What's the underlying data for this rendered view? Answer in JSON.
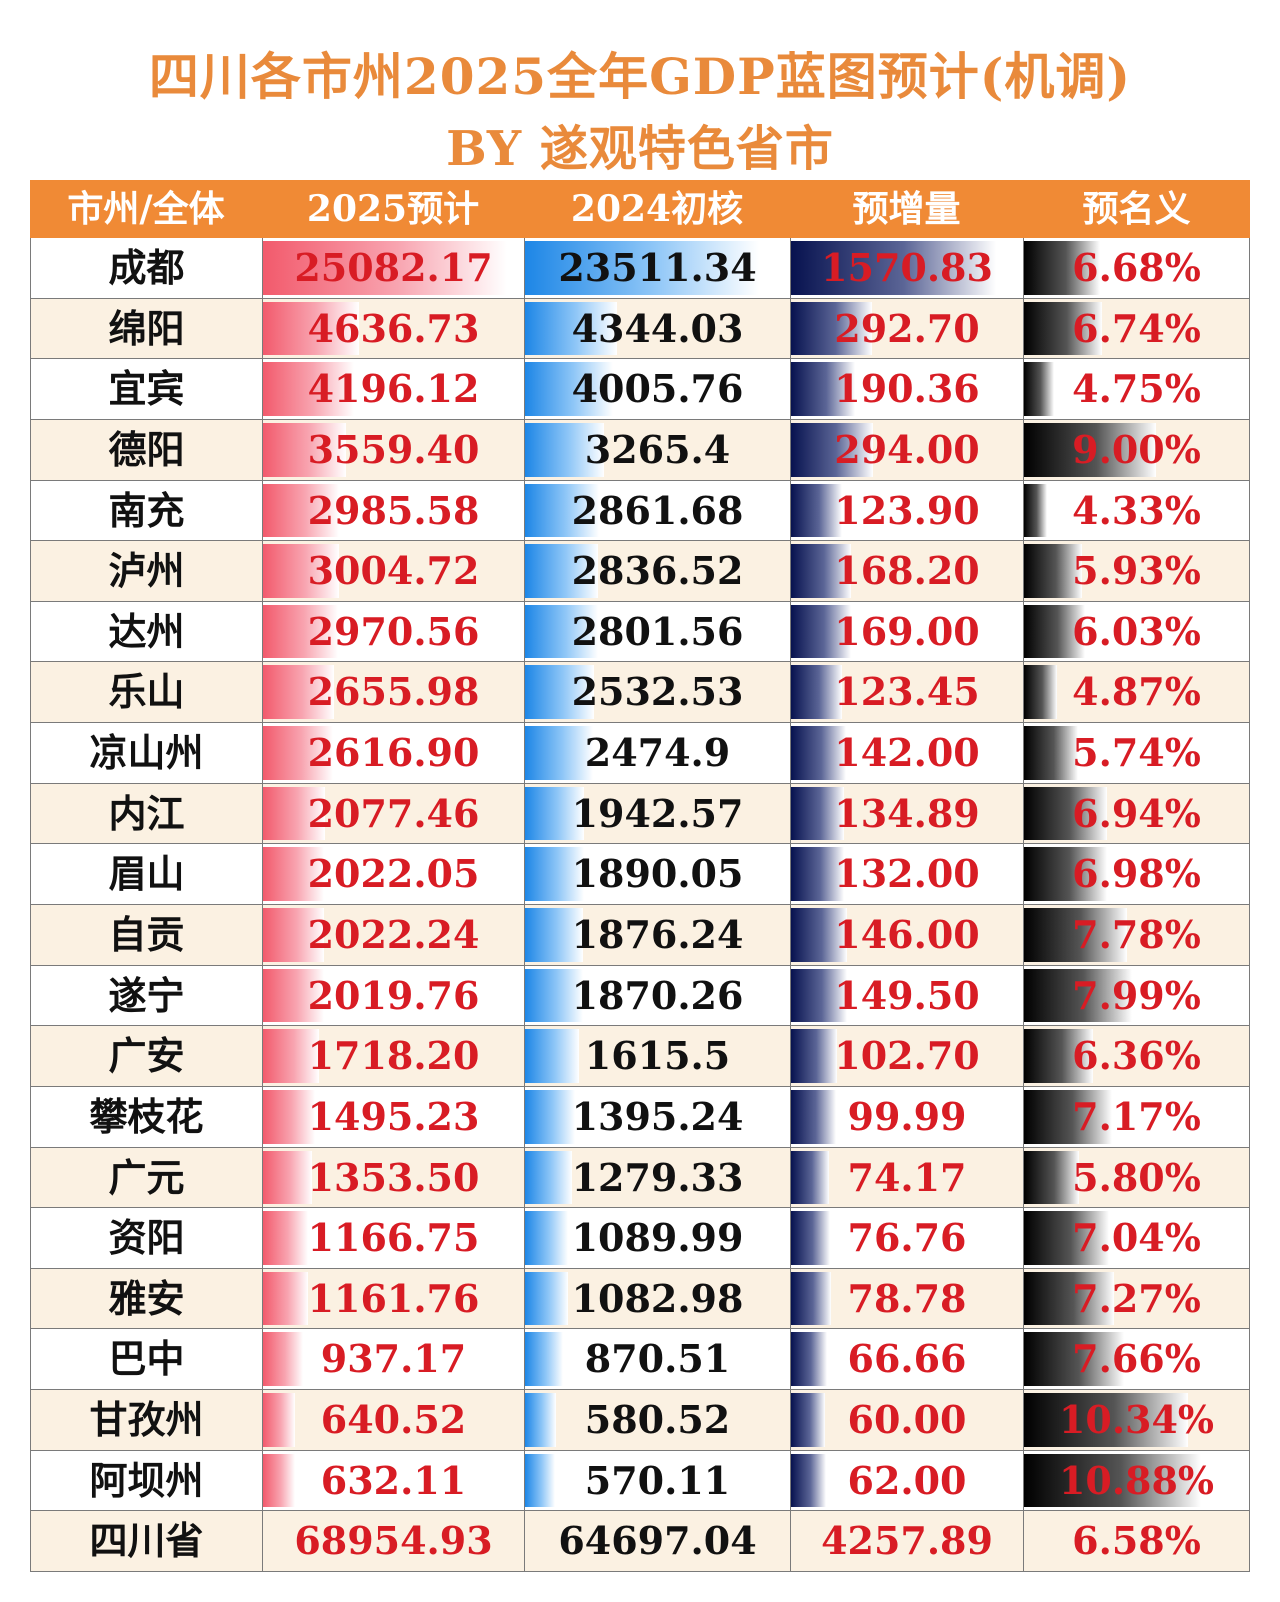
{
  "title": "四川各市州2025全年GDP蓝图预计(机调)",
  "subtitle": "BY 遂观特色省市",
  "colors": {
    "title": "#e98a3b",
    "header_bg": "#f08a35",
    "value_red": "#d81c24",
    "row_alt": "#fbf1e2",
    "bar_2025": "#f25a6c",
    "bar_2024": "#1d86e6",
    "bar_increase": "#07124f",
    "bar_growth": "#000000"
  },
  "chart_data": {
    "type": "table",
    "columns": [
      "市州/全体",
      "2025预计",
      "2024初核",
      "预增量",
      "预名义"
    ],
    "rows": [
      {
        "name": "成都",
        "gdp2025": "25082.17",
        "gdp2024": "23511.34",
        "increase": "1570.83",
        "growth": "6.68%"
      },
      {
        "name": "绵阳",
        "gdp2025": "4636.73",
        "gdp2024": "4344.03",
        "increase": "292.70",
        "growth": "6.74%"
      },
      {
        "name": "宜宾",
        "gdp2025": "4196.12",
        "gdp2024": "4005.76",
        "increase": "190.36",
        "growth": "4.75%"
      },
      {
        "name": "德阳",
        "gdp2025": "3559.40",
        "gdp2024": "3265.4",
        "increase": "294.00",
        "growth": "9.00%"
      },
      {
        "name": "南充",
        "gdp2025": "2985.58",
        "gdp2024": "2861.68",
        "increase": "123.90",
        "growth": "4.33%"
      },
      {
        "name": "泸州",
        "gdp2025": "3004.72",
        "gdp2024": "2836.52",
        "increase": "168.20",
        "growth": "5.93%"
      },
      {
        "name": "达州",
        "gdp2025": "2970.56",
        "gdp2024": "2801.56",
        "increase": "169.00",
        "growth": "6.03%"
      },
      {
        "name": "乐山",
        "gdp2025": "2655.98",
        "gdp2024": "2532.53",
        "increase": "123.45",
        "growth": "4.87%"
      },
      {
        "name": "凉山州",
        "gdp2025": "2616.90",
        "gdp2024": "2474.9",
        "increase": "142.00",
        "growth": "5.74%"
      },
      {
        "name": "内江",
        "gdp2025": "2077.46",
        "gdp2024": "1942.57",
        "increase": "134.89",
        "growth": "6.94%"
      },
      {
        "name": "眉山",
        "gdp2025": "2022.05",
        "gdp2024": "1890.05",
        "increase": "132.00",
        "growth": "6.98%"
      },
      {
        "name": "自贡",
        "gdp2025": "2022.24",
        "gdp2024": "1876.24",
        "increase": "146.00",
        "growth": "7.78%"
      },
      {
        "name": "遂宁",
        "gdp2025": "2019.76",
        "gdp2024": "1870.26",
        "increase": "149.50",
        "growth": "7.99%"
      },
      {
        "name": "广安",
        "gdp2025": "1718.20",
        "gdp2024": "1615.5",
        "increase": "102.70",
        "growth": "6.36%"
      },
      {
        "name": "攀枝花",
        "gdp2025": "1495.23",
        "gdp2024": "1395.24",
        "increase": "99.99",
        "growth": "7.17%"
      },
      {
        "name": "广元",
        "gdp2025": "1353.50",
        "gdp2024": "1279.33",
        "increase": "74.17",
        "growth": "5.80%"
      },
      {
        "name": "资阳",
        "gdp2025": "1166.75",
        "gdp2024": "1089.99",
        "increase": "76.76",
        "growth": "7.04%"
      },
      {
        "name": "雅安",
        "gdp2025": "1161.76",
        "gdp2024": "1082.98",
        "increase": "78.78",
        "growth": "7.27%"
      },
      {
        "name": "巴中",
        "gdp2025": "937.17",
        "gdp2024": "870.51",
        "increase": "66.66",
        "growth": "7.66%"
      },
      {
        "name": "甘孜州",
        "gdp2025": "640.52",
        "gdp2024": "580.52",
        "increase": "60.00",
        "growth": "10.34%"
      },
      {
        "name": "阿坝州",
        "gdp2025": "632.11",
        "gdp2024": "570.11",
        "increase": "62.00",
        "growth": "10.88%"
      }
    ],
    "total": {
      "name": "四川省",
      "gdp2025": "68954.93",
      "gdp2024": "64697.04",
      "increase": "4257.89",
      "growth": "6.58%"
    }
  }
}
